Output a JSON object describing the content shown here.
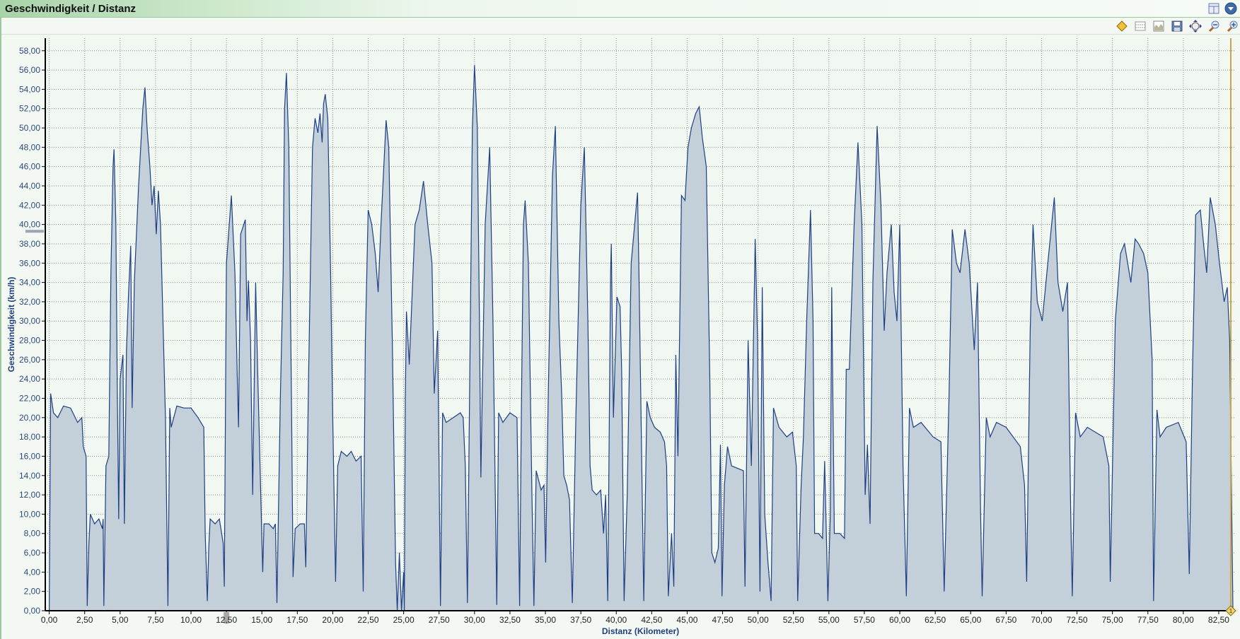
{
  "window": {
    "title": "Geschwindigkeit / Distanz"
  },
  "titlebar_icons": [
    "layout-icon",
    "dropdown-circle-icon"
  ],
  "toolbar": {
    "icons": [
      "marker-diamond-icon",
      "grid-lines-icon",
      "area-chart-icon",
      "save-icon",
      "pan-icon",
      "zoom-out-icon",
      "zoom-in-icon"
    ]
  },
  "colors": {
    "fill": "#c3cfd9",
    "line": "#1f3f85",
    "grid": "#8a8a8a",
    "cursor": "#c9a64a",
    "background": "#f3f8f3"
  },
  "chart_data": {
    "type": "area",
    "title": "Geschwindigkeit / Distanz",
    "xlabel": "Distanz (Kilometer)",
    "ylabel": "Geschwindigkeit (km/h)",
    "xlim": [
      -0.28,
      83.7
    ],
    "ylim": [
      0,
      59.3
    ],
    "grid": true,
    "xticks": [
      "0,00",
      "2,50",
      "5,00",
      "7,50",
      "10,00",
      "12,50",
      "15,00",
      "17,50",
      "20,00",
      "22,50",
      "25,00",
      "27,50",
      "30,00",
      "32,50",
      "35,00",
      "37,50",
      "40,00",
      "42,50",
      "45,00",
      "47,50",
      "50,00",
      "52,50",
      "55,00",
      "57,50",
      "60,00",
      "62,50",
      "65,00",
      "67,50",
      "70,00",
      "72,50",
      "75,00",
      "77,50",
      "80,00",
      "82,50"
    ],
    "yticks": [
      "0,00",
      "2,00",
      "4,00",
      "6,00",
      "8,00",
      "10,00",
      "12,00",
      "14,00",
      "16,00",
      "18,00",
      "20,00",
      "22,00",
      "24,00",
      "26,00",
      "28,00",
      "30,00",
      "32,00",
      "34,00",
      "36,00",
      "38,00",
      "40,00",
      "42,00",
      "44,00",
      "46,00",
      "48,00",
      "50,00",
      "52,00",
      "54,00",
      "56,00",
      "58,00"
    ],
    "highlighted": {
      "x_tick": "12,50",
      "y_value": 39.3
    },
    "cursor_marker": {
      "x": 83.35,
      "label": "1"
    },
    "points": [
      [
        0,
        0
      ],
      [
        0.1,
        22.5
      ],
      [
        0.3,
        20.5
      ],
      [
        0.6,
        20
      ],
      [
        1.0,
        21.2
      ],
      [
        1.5,
        21
      ],
      [
        2.0,
        19.5
      ],
      [
        2.3,
        20
      ],
      [
        2.4,
        17
      ],
      [
        2.6,
        16
      ],
      [
        2.68,
        0.5
      ],
      [
        2.8,
        7
      ],
      [
        2.9,
        10
      ],
      [
        3.2,
        9
      ],
      [
        3.5,
        9.5
      ],
      [
        3.75,
        8.5
      ],
      [
        3.8,
        9.5
      ],
      [
        3.85,
        0.5
      ],
      [
        4.0,
        15
      ],
      [
        4.2,
        16
      ],
      [
        4.35,
        35
      ],
      [
        4.5,
        46
      ],
      [
        4.57,
        47.8
      ],
      [
        4.7,
        40
      ],
      [
        4.8,
        23
      ],
      [
        4.9,
        9.5
      ],
      [
        5.0,
        24
      ],
      [
        5.2,
        26.5
      ],
      [
        5.3,
        9
      ],
      [
        5.45,
        27
      ],
      [
        5.6,
        33
      ],
      [
        5.75,
        37.8
      ],
      [
        5.85,
        21
      ],
      [
        6.0,
        34
      ],
      [
        6.3,
        44
      ],
      [
        6.6,
        52
      ],
      [
        6.75,
        54.2
      ],
      [
        6.9,
        50
      ],
      [
        7.1,
        46
      ],
      [
        7.25,
        42
      ],
      [
        7.4,
        44
      ],
      [
        7.55,
        39
      ],
      [
        7.7,
        43.5
      ],
      [
        7.85,
        40
      ],
      [
        8.2,
        20
      ],
      [
        8.37,
        0.5
      ],
      [
        8.5,
        21
      ],
      [
        8.6,
        19
      ],
      [
        9.0,
        21.2
      ],
      [
        9.5,
        21
      ],
      [
        10.0,
        21
      ],
      [
        10.5,
        20
      ],
      [
        10.9,
        19
      ],
      [
        11.0,
        8
      ],
      [
        11.15,
        1
      ],
      [
        11.25,
        6.5
      ],
      [
        11.35,
        9.5
      ],
      [
        11.7,
        9
      ],
      [
        12.0,
        9.5
      ],
      [
        12.27,
        7
      ],
      [
        12.35,
        2.5
      ],
      [
        12.5,
        36
      ],
      [
        12.7,
        40
      ],
      [
        12.85,
        43
      ],
      [
        13.1,
        35
      ],
      [
        13.27,
        24
      ],
      [
        13.35,
        19
      ],
      [
        13.5,
        39
      ],
      [
        13.83,
        40.5
      ],
      [
        13.95,
        30
      ],
      [
        14.05,
        34.2
      ],
      [
        14.2,
        28
      ],
      [
        14.35,
        12
      ],
      [
        14.56,
        34
      ],
      [
        14.7,
        25
      ],
      [
        15.06,
        4
      ],
      [
        15.15,
        9
      ],
      [
        15.5,
        9
      ],
      [
        15.8,
        8.5
      ],
      [
        15.95,
        9
      ],
      [
        16.06,
        0.8
      ],
      [
        16.3,
        22
      ],
      [
        16.5,
        35
      ],
      [
        16.6,
        52
      ],
      [
        16.73,
        55.7
      ],
      [
        16.9,
        48
      ],
      [
        17.1,
        20
      ],
      [
        17.2,
        3.5
      ],
      [
        17.35,
        8.5
      ],
      [
        17.7,
        9
      ],
      [
        18.0,
        9
      ],
      [
        18.1,
        4.5
      ],
      [
        18.3,
        25
      ],
      [
        18.57,
        48
      ],
      [
        18.75,
        51
      ],
      [
        18.95,
        49.5
      ],
      [
        19.1,
        51.5
      ],
      [
        19.25,
        48.5
      ],
      [
        19.35,
        52.5
      ],
      [
        19.47,
        53.5
      ],
      [
        19.65,
        51
      ],
      [
        19.85,
        35
      ],
      [
        20.0,
        20
      ],
      [
        20.2,
        3
      ],
      [
        20.35,
        15
      ],
      [
        20.6,
        16.5
      ],
      [
        21.0,
        16
      ],
      [
        21.3,
        16.5
      ],
      [
        21.64,
        15.5
      ],
      [
        22.0,
        16
      ],
      [
        22.15,
        2
      ],
      [
        22.3,
        28
      ],
      [
        22.5,
        41.5
      ],
      [
        22.75,
        40
      ],
      [
        23.0,
        37
      ],
      [
        23.2,
        33
      ],
      [
        23.4,
        40
      ],
      [
        23.76,
        50.8
      ],
      [
        23.95,
        48
      ],
      [
        24.2,
        28
      ],
      [
        24.43,
        5
      ],
      [
        24.55,
        0
      ],
      [
        24.7,
        6
      ],
      [
        24.85,
        0
      ],
      [
        25.0,
        4
      ],
      [
        25.05,
        0
      ],
      [
        25.12,
        22
      ],
      [
        25.2,
        31
      ],
      [
        25.4,
        25.5
      ],
      [
        25.8,
        40
      ],
      [
        26.1,
        41.5
      ],
      [
        26.4,
        44.5
      ],
      [
        26.7,
        40
      ],
      [
        27.0,
        36
      ],
      [
        27.16,
        22.5
      ],
      [
        27.4,
        29
      ],
      [
        27.6,
        0.5
      ],
      [
        27.75,
        20.5
      ],
      [
        28.0,
        19.5
      ],
      [
        28.5,
        20
      ],
      [
        29.0,
        20.5
      ],
      [
        29.2,
        20
      ],
      [
        29.35,
        15
      ],
      [
        29.5,
        0.8
      ],
      [
        29.65,
        22
      ],
      [
        29.85,
        50
      ],
      [
        30.0,
        56.5
      ],
      [
        30.2,
        50
      ],
      [
        30.35,
        30
      ],
      [
        30.45,
        13.8
      ],
      [
        30.75,
        40
      ],
      [
        31.07,
        48
      ],
      [
        31.3,
        30
      ],
      [
        31.57,
        0.6
      ],
      [
        31.7,
        20.5
      ],
      [
        32.0,
        19.5
      ],
      [
        32.5,
        20.5
      ],
      [
        33.0,
        20
      ],
      [
        33.18,
        0.5
      ],
      [
        33.3,
        20
      ],
      [
        33.45,
        40
      ],
      [
        33.57,
        42.5
      ],
      [
        33.8,
        36
      ],
      [
        34.05,
        12
      ],
      [
        34.19,
        0.5
      ],
      [
        34.35,
        14.5
      ],
      [
        34.7,
        12.5
      ],
      [
        34.9,
        13
      ],
      [
        35.02,
        5
      ],
      [
        35.2,
        22
      ],
      [
        35.5,
        45
      ],
      [
        35.7,
        50.2
      ],
      [
        35.95,
        30
      ],
      [
        36.15,
        22.3
      ],
      [
        36.3,
        14
      ],
      [
        36.5,
        13
      ],
      [
        36.7,
        11.5
      ],
      [
        36.9,
        0.8
      ],
      [
        37.15,
        20
      ],
      [
        37.5,
        42
      ],
      [
        37.75,
        48
      ],
      [
        38.0,
        30
      ],
      [
        38.15,
        15
      ],
      [
        38.3,
        12.5
      ],
      [
        38.6,
        12
      ],
      [
        38.9,
        12.5
      ],
      [
        39.1,
        8
      ],
      [
        39.25,
        12
      ],
      [
        39.4,
        1
      ],
      [
        39.6,
        35
      ],
      [
        39.65,
        38
      ],
      [
        39.8,
        20
      ],
      [
        40.05,
        32.5
      ],
      [
        40.27,
        31.5
      ],
      [
        40.38,
        25
      ],
      [
        40.55,
        1
      ],
      [
        40.77,
        12
      ],
      [
        41.05,
        36
      ],
      [
        41.5,
        43.3
      ],
      [
        41.6,
        35
      ],
      [
        41.83,
        12
      ],
      [
        41.94,
        1
      ],
      [
        42.16,
        21.7
      ],
      [
        42.4,
        20
      ],
      [
        42.7,
        19
      ],
      [
        43.1,
        18.5
      ],
      [
        43.4,
        17.5
      ],
      [
        43.55,
        15
      ],
      [
        43.67,
        1.5
      ],
      [
        43.9,
        8
      ],
      [
        44.06,
        2.5
      ],
      [
        44.2,
        26.5
      ],
      [
        44.35,
        16
      ],
      [
        44.6,
        43
      ],
      [
        44.85,
        42.5
      ],
      [
        45.06,
        48
      ],
      [
        45.3,
        50
      ],
      [
        45.6,
        51.5
      ],
      [
        45.85,
        52.2
      ],
      [
        46.07,
        49
      ],
      [
        46.35,
        46
      ],
      [
        46.6,
        24
      ],
      [
        46.74,
        6
      ],
      [
        46.96,
        5
      ],
      [
        47.2,
        6.5
      ],
      [
        47.35,
        17.2
      ],
      [
        47.46,
        1.5
      ],
      [
        47.63,
        13
      ],
      [
        47.85,
        17
      ],
      [
        48.13,
        15
      ],
      [
        48.97,
        14.5
      ],
      [
        49.08,
        2.5
      ],
      [
        49.3,
        28
      ],
      [
        49.53,
        15
      ],
      [
        49.8,
        38.5
      ],
      [
        49.97,
        28
      ],
      [
        50.14,
        2
      ],
      [
        50.3,
        33.5
      ],
      [
        50.47,
        10
      ],
      [
        50.7,
        5
      ],
      [
        50.92,
        1
      ],
      [
        51.09,
        21
      ],
      [
        51.48,
        19
      ],
      [
        52.03,
        18
      ],
      [
        52.43,
        18.5
      ],
      [
        52.7,
        15
      ],
      [
        52.8,
        1
      ],
      [
        53.04,
        13
      ],
      [
        53.2,
        18
      ],
      [
        53.43,
        30
      ],
      [
        53.7,
        41.5
      ],
      [
        53.88,
        30
      ],
      [
        53.99,
        8
      ],
      [
        54.27,
        8
      ],
      [
        54.55,
        7.5
      ],
      [
        54.7,
        15.5
      ],
      [
        54.93,
        1
      ],
      [
        55.1,
        10
      ],
      [
        55.2,
        33.5
      ],
      [
        55.38,
        8
      ],
      [
        55.77,
        8
      ],
      [
        56.1,
        7.5
      ],
      [
        56.22,
        25
      ],
      [
        56.44,
        25
      ],
      [
        56.78,
        40
      ],
      [
        57.05,
        48.5
      ],
      [
        57.33,
        40
      ],
      [
        57.56,
        12
      ],
      [
        57.72,
        17.2
      ],
      [
        57.9,
        9
      ],
      [
        58.1,
        34
      ],
      [
        58.4,
        50.2
      ],
      [
        58.67,
        42
      ],
      [
        58.9,
        29
      ],
      [
        59.1,
        35
      ],
      [
        59.4,
        40
      ],
      [
        59.6,
        33
      ],
      [
        59.8,
        30
      ],
      [
        60.0,
        40
      ],
      [
        60.23,
        15
      ],
      [
        60.46,
        1.5
      ],
      [
        60.68,
        21
      ],
      [
        60.96,
        19
      ],
      [
        61.5,
        19.5
      ],
      [
        62.35,
        18
      ],
      [
        62.9,
        17.5
      ],
      [
        63.13,
        2
      ],
      [
        63.47,
        22
      ],
      [
        63.7,
        39.5
      ],
      [
        64.0,
        36
      ],
      [
        64.25,
        35
      ],
      [
        64.6,
        39.5
      ],
      [
        64.9,
        36
      ],
      [
        65.25,
        27
      ],
      [
        65.48,
        34
      ],
      [
        65.7,
        10
      ],
      [
        65.81,
        1.5
      ],
      [
        66.1,
        20
      ],
      [
        66.37,
        18
      ],
      [
        66.82,
        19.5
      ],
      [
        67.5,
        19
      ],
      [
        68.5,
        17
      ],
      [
        68.8,
        13
      ],
      [
        68.95,
        3
      ],
      [
        69.2,
        29
      ],
      [
        69.4,
        40
      ],
      [
        69.7,
        32
      ],
      [
        70.05,
        30
      ],
      [
        70.44,
        36
      ],
      [
        70.9,
        42.8
      ],
      [
        71.16,
        34
      ],
      [
        71.5,
        31
      ],
      [
        71.83,
        34
      ],
      [
        72.06,
        10
      ],
      [
        72.17,
        1.5
      ],
      [
        72.4,
        20.5
      ],
      [
        72.73,
        18
      ],
      [
        73.23,
        19
      ],
      [
        74.35,
        18
      ],
      [
        74.75,
        15
      ],
      [
        74.85,
        3
      ],
      [
        75.2,
        30
      ],
      [
        75.57,
        37
      ],
      [
        75.85,
        38
      ],
      [
        76.3,
        34
      ],
      [
        76.6,
        38.5
      ],
      [
        76.85,
        38
      ],
      [
        77.2,
        37
      ],
      [
        77.5,
        35
      ],
      [
        77.8,
        26
      ],
      [
        77.9,
        1
      ],
      [
        78.14,
        20.8
      ],
      [
        78.36,
        18
      ],
      [
        78.8,
        19
      ],
      [
        79.65,
        19.5
      ],
      [
        80.2,
        17.5
      ],
      [
        80.42,
        3.8
      ],
      [
        80.65,
        25
      ],
      [
        80.87,
        41
      ],
      [
        81.2,
        41.5
      ],
      [
        81.43,
        38
      ],
      [
        81.65,
        35
      ],
      [
        81.9,
        42.8
      ],
      [
        82.26,
        40
      ],
      [
        82.55,
        36
      ],
      [
        82.88,
        32
      ],
      [
        83.1,
        33.5
      ],
      [
        83.27,
        28
      ],
      [
        83.5,
        0
      ]
    ]
  }
}
